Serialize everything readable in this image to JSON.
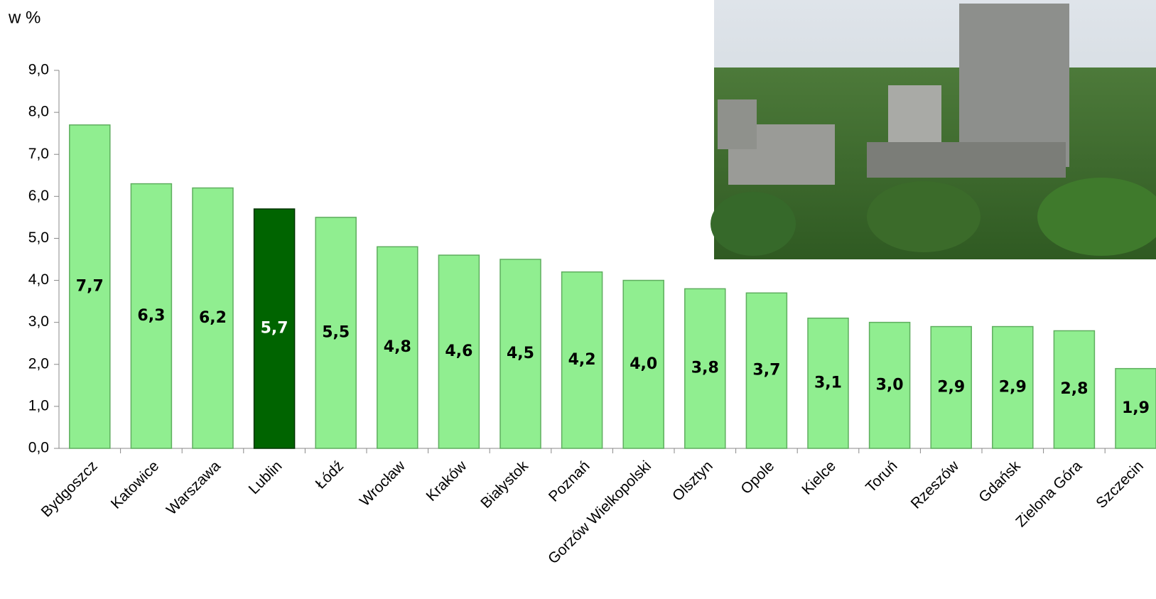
{
  "chart_data": {
    "type": "bar",
    "y_label": "w %",
    "categories": [
      "Bydgoszcz",
      "Katowice",
      "Warszawa",
      "Lublin",
      "Łódź",
      "Wrocław",
      "Kraków",
      "Białystok",
      "Poznań",
      "Gorzów Wielkopolski",
      "Olsztyn",
      "Opole",
      "Kielce",
      "Toruń",
      "Rzeszów",
      "Gdańsk",
      "Zielona Góra",
      "Szczecin"
    ],
    "values": [
      7.7,
      6.3,
      6.2,
      5.7,
      5.5,
      4.8,
      4.6,
      4.5,
      4.2,
      4.0,
      3.8,
      3.7,
      3.1,
      3.0,
      2.9,
      2.9,
      2.8,
      1.9
    ],
    "value_labels": [
      "7,7",
      "6,3",
      "6,2",
      "5,7",
      "5,5",
      "4,8",
      "4,6",
      "4,5",
      "4,2",
      "4,0",
      "3,8",
      "3,7",
      "3,1",
      "3,0",
      "2,9",
      "2,9",
      "2,8",
      "1,9"
    ],
    "colors": [
      "#90ee90",
      "#90ee90",
      "#90ee90",
      "#006400",
      "#90ee90",
      "#90ee90",
      "#90ee90",
      "#90ee90",
      "#90ee90",
      "#90ee90",
      "#90ee90",
      "#90ee90",
      "#90ee90",
      "#90ee90",
      "#90ee90",
      "#90ee90",
      "#90ee90",
      "#90ee90"
    ],
    "ylim": [
      0,
      9
    ],
    "yticks": [
      {
        "value": 0,
        "label": "0,0"
      },
      {
        "value": 1,
        "label": "1,0"
      },
      {
        "value": 2,
        "label": "2,0"
      },
      {
        "value": 3,
        "label": "3,0"
      },
      {
        "value": 4,
        "label": "4,0"
      },
      {
        "value": 5,
        "label": "5,0"
      },
      {
        "value": 6,
        "label": "6,0"
      },
      {
        "value": 7,
        "label": "7,0"
      },
      {
        "value": 8,
        "label": "8,0"
      },
      {
        "value": 9,
        "label": "9,0"
      }
    ],
    "grid": false
  }
}
